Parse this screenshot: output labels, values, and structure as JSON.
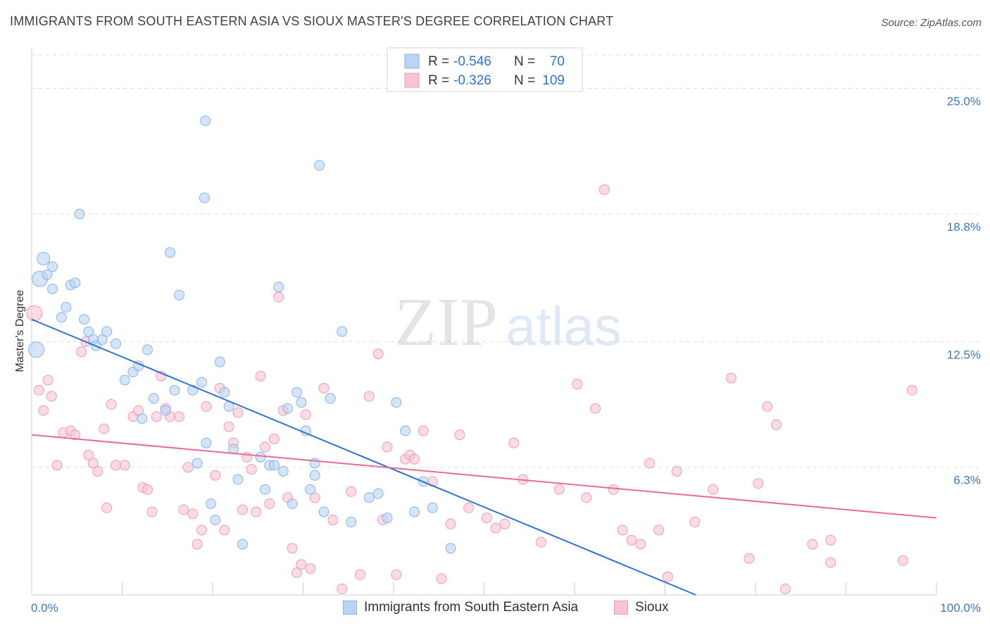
{
  "header": {
    "title": "IMMIGRANTS FROM SOUTH EASTERN ASIA VS SIOUX MASTER'S DEGREE CORRELATION CHART",
    "source": "Source: ZipAtlas.com"
  },
  "watermark": {
    "zip": "ZIP",
    "atlas": "atlas"
  },
  "legend": {
    "rows": [
      {
        "r_label": "R =",
        "r_value": "-0.546",
        "n_label": "N =",
        "n_value": "70"
      },
      {
        "r_label": "R =",
        "r_value": "-0.326",
        "n_label": "N =",
        "n_value": "109"
      }
    ]
  },
  "colors": {
    "blue_fill": "#b8d3f3",
    "blue_stroke": "#8ab4e6",
    "blue_line": "#2f72d0",
    "pink_fill": "#f8c4d4",
    "pink_stroke": "#f09ab6",
    "pink_line": "#e8699a",
    "grid": "#dddddd",
    "axis_text": "#3a78c2"
  },
  "chart_data": {
    "type": "scatter",
    "title": "IMMIGRANTS FROM SOUTH EASTERN ASIA VS SIOUX MASTER'S DEGREE CORRELATION CHART",
    "xlabel": "",
    "ylabel": "Master's Degree",
    "xlim": [
      0,
      100
    ],
    "ylim": [
      0,
      27
    ],
    "x_tick_labels": [
      "0.0%",
      "100.0%"
    ],
    "y_ticks": [
      {
        "value": 6.3,
        "label": "6.3%"
      },
      {
        "value": 12.5,
        "label": "12.5%"
      },
      {
        "value": 18.8,
        "label": "18.8%"
      },
      {
        "value": 25.0,
        "label": "25.0%"
      }
    ],
    "series": [
      {
        "name": "Immigrants from South Eastern Asia",
        "color": "blue",
        "r": -0.546,
        "n": 70,
        "trend": {
          "x": [
            0,
            73.4
          ],
          "y": [
            13.6,
            0
          ]
        },
        "points": [
          [
            0.5,
            12.1,
            22
          ],
          [
            0.9,
            15.6,
            22
          ],
          [
            1.3,
            16.6,
            18
          ],
          [
            1.7,
            15.8,
            14
          ],
          [
            2.3,
            15.1,
            14
          ],
          [
            2.3,
            16.2,
            14
          ],
          [
            3.3,
            13.7,
            14
          ],
          [
            3.8,
            14.2,
            14
          ],
          [
            4.3,
            15.3,
            14
          ],
          [
            4.8,
            15.4,
            14
          ],
          [
            5.3,
            18.8,
            14
          ],
          [
            5.8,
            13.6,
            14
          ],
          [
            6.3,
            13.0,
            14
          ],
          [
            6.8,
            12.6,
            14
          ],
          [
            7.1,
            12.3,
            14
          ],
          [
            7.8,
            12.6,
            14
          ],
          [
            8.3,
            13.0,
            14
          ],
          [
            9.3,
            12.4,
            14
          ],
          [
            10.3,
            10.6,
            14
          ],
          [
            11.2,
            11.0,
            14
          ],
          [
            11.8,
            11.3,
            14
          ],
          [
            12.2,
            8.7,
            14
          ],
          [
            12.8,
            12.1,
            14
          ],
          [
            13.5,
            9.7,
            14
          ],
          [
            14.8,
            9.1,
            14
          ],
          [
            15.3,
            16.9,
            14
          ],
          [
            15.8,
            10.1,
            14
          ],
          [
            16.3,
            14.8,
            14
          ],
          [
            17.8,
            10.1,
            14
          ],
          [
            18.3,
            6.5,
            14
          ],
          [
            18.8,
            10.5,
            14
          ],
          [
            19.3,
            7.5,
            14
          ],
          [
            19.8,
            4.5,
            14
          ],
          [
            20.3,
            3.7,
            14
          ],
          [
            20.8,
            11.5,
            14
          ],
          [
            21.3,
            10.0,
            14
          ],
          [
            21.8,
            9.3,
            14
          ],
          [
            22.3,
            7.2,
            14
          ],
          [
            22.8,
            5.7,
            14
          ],
          [
            23.3,
            2.5,
            14
          ],
          [
            19.2,
            23.4,
            14
          ],
          [
            19.1,
            19.6,
            14
          ],
          [
            25.3,
            6.8,
            14
          ],
          [
            25.8,
            5.2,
            14
          ],
          [
            26.3,
            6.4,
            14
          ],
          [
            26.8,
            6.4,
            14
          ],
          [
            27.3,
            15.2,
            14
          ],
          [
            27.8,
            6.1,
            14
          ],
          [
            28.3,
            9.2,
            14
          ],
          [
            28.8,
            4.5,
            14
          ],
          [
            29.3,
            10.0,
            14
          ],
          [
            29.8,
            9.5,
            14
          ],
          [
            30.3,
            8.1,
            14
          ],
          [
            30.8,
            5.2,
            14
          ],
          [
            31.3,
            6.5,
            14
          ],
          [
            31.3,
            5.9,
            14
          ],
          [
            32.3,
            4.1,
            14
          ],
          [
            34.3,
            13.0,
            14
          ],
          [
            35.3,
            3.6,
            14
          ],
          [
            33.0,
            9.7,
            14
          ],
          [
            37.3,
            4.8,
            14
          ],
          [
            38.3,
            5.0,
            14
          ],
          [
            39.3,
            3.8,
            14
          ],
          [
            40.3,
            9.5,
            14
          ],
          [
            31.8,
            21.2,
            14
          ],
          [
            41.3,
            8.1,
            14
          ],
          [
            42.3,
            4.1,
            14
          ],
          [
            43.3,
            5.6,
            14
          ],
          [
            44.3,
            4.3,
            14
          ],
          [
            46.3,
            2.3,
            14
          ]
        ]
      },
      {
        "name": "Sioux",
        "color": "pink",
        "r": -0.326,
        "n": 109,
        "trend": {
          "x": [
            0,
            100
          ],
          "y": [
            7.9,
            3.8
          ]
        },
        "points": [
          [
            0.3,
            13.9,
            22
          ],
          [
            0.8,
            10.1,
            14
          ],
          [
            1.3,
            9.1,
            14
          ],
          [
            1.8,
            10.6,
            14
          ],
          [
            2.2,
            9.8,
            14
          ],
          [
            2.8,
            6.4,
            14
          ],
          [
            3.5,
            8.0,
            14
          ],
          [
            4.3,
            8.1,
            14
          ],
          [
            4.8,
            7.9,
            14
          ],
          [
            5.5,
            12.0,
            14
          ],
          [
            6.0,
            12.5,
            14
          ],
          [
            6.3,
            6.9,
            14
          ],
          [
            6.8,
            6.5,
            14
          ],
          [
            7.3,
            6.1,
            14
          ],
          [
            8.0,
            8.2,
            14
          ],
          [
            8.3,
            4.3,
            14
          ],
          [
            8.8,
            9.4,
            14
          ],
          [
            9.3,
            6.4,
            14
          ],
          [
            10.3,
            6.4,
            14
          ],
          [
            11.2,
            8.8,
            14
          ],
          [
            11.8,
            9.1,
            14
          ],
          [
            12.3,
            5.3,
            14
          ],
          [
            12.8,
            5.2,
            14
          ],
          [
            13.3,
            4.1,
            14
          ],
          [
            13.8,
            8.8,
            14
          ],
          [
            14.3,
            10.8,
            14
          ],
          [
            14.8,
            9.2,
            14
          ],
          [
            15.3,
            8.8,
            14
          ],
          [
            16.3,
            8.8,
            14
          ],
          [
            16.8,
            4.2,
            14
          ],
          [
            17.3,
            6.3,
            14
          ],
          [
            17.8,
            4.0,
            14
          ],
          [
            18.3,
            2.5,
            14
          ],
          [
            18.8,
            3.2,
            14
          ],
          [
            19.3,
            9.3,
            14
          ],
          [
            20.3,
            5.9,
            14
          ],
          [
            20.8,
            10.2,
            14
          ],
          [
            21.3,
            3.2,
            14
          ],
          [
            21.8,
            8.3,
            14
          ],
          [
            22.3,
            7.5,
            14
          ],
          [
            22.8,
            9.0,
            14
          ],
          [
            23.3,
            4.2,
            14
          ],
          [
            23.8,
            6.8,
            14
          ],
          [
            24.3,
            6.2,
            14
          ],
          [
            24.8,
            4.1,
            14
          ],
          [
            25.3,
            10.8,
            14
          ],
          [
            25.8,
            7.3,
            14
          ],
          [
            26.3,
            4.5,
            14
          ],
          [
            26.8,
            7.7,
            14
          ],
          [
            27.3,
            14.7,
            14
          ],
          [
            27.8,
            9.1,
            14
          ],
          [
            28.3,
            4.8,
            14
          ],
          [
            28.8,
            2.3,
            14
          ],
          [
            29.3,
            1.1,
            14
          ],
          [
            29.8,
            1.5,
            14
          ],
          [
            30.3,
            8.9,
            14
          ],
          [
            30.8,
            1.3,
            14
          ],
          [
            31.3,
            4.8,
            14
          ],
          [
            32.3,
            10.2,
            14
          ],
          [
            33.3,
            3.7,
            14
          ],
          [
            34.3,
            0.3,
            14
          ],
          [
            35.3,
            5.1,
            14
          ],
          [
            36.3,
            1.0,
            14
          ],
          [
            37.3,
            9.8,
            14
          ],
          [
            38.3,
            11.9,
            14
          ],
          [
            38.8,
            3.7,
            14
          ],
          [
            39.3,
            7.3,
            14
          ],
          [
            40.3,
            1.0,
            14
          ],
          [
            41.3,
            6.7,
            14
          ],
          [
            41.8,
            6.9,
            14
          ],
          [
            42.3,
            6.7,
            14
          ],
          [
            43.3,
            8.1,
            14
          ],
          [
            44.3,
            5.6,
            14
          ],
          [
            45.3,
            0.8,
            14
          ],
          [
            46.3,
            3.5,
            14
          ],
          [
            47.3,
            7.9,
            14
          ],
          [
            48.3,
            4.3,
            14
          ],
          [
            50.3,
            3.8,
            14
          ],
          [
            51.3,
            3.3,
            14
          ],
          [
            52.3,
            3.5,
            14
          ],
          [
            53.3,
            7.5,
            14
          ],
          [
            54.3,
            5.7,
            14
          ],
          [
            56.3,
            2.6,
            14
          ],
          [
            58.3,
            5.2,
            14
          ],
          [
            60.3,
            10.4,
            14
          ],
          [
            61.3,
            4.8,
            14
          ],
          [
            62.3,
            9.2,
            14
          ],
          [
            63.3,
            20.0,
            14
          ],
          [
            64.3,
            5.2,
            14
          ],
          [
            65.3,
            3.2,
            14
          ],
          [
            66.3,
            2.7,
            14
          ],
          [
            67.3,
            2.5,
            14
          ],
          [
            68.3,
            6.5,
            14
          ],
          [
            69.3,
            3.2,
            14
          ],
          [
            70.3,
            0.9,
            14
          ],
          [
            71.3,
            6.1,
            14
          ],
          [
            73.3,
            3.6,
            14
          ],
          [
            75.3,
            5.2,
            14
          ],
          [
            77.3,
            10.7,
            14
          ],
          [
            79.3,
            1.8,
            14
          ],
          [
            80.3,
            5.5,
            14
          ],
          [
            81.3,
            9.3,
            14
          ],
          [
            82.3,
            8.4,
            14
          ],
          [
            83.3,
            0.3,
            14
          ],
          [
            86.3,
            2.5,
            14
          ],
          [
            88.3,
            1.6,
            14
          ],
          [
            97.3,
            10.1,
            14
          ],
          [
            96.3,
            1.7,
            14
          ],
          [
            88.3,
            2.7,
            14
          ]
        ]
      }
    ]
  }
}
